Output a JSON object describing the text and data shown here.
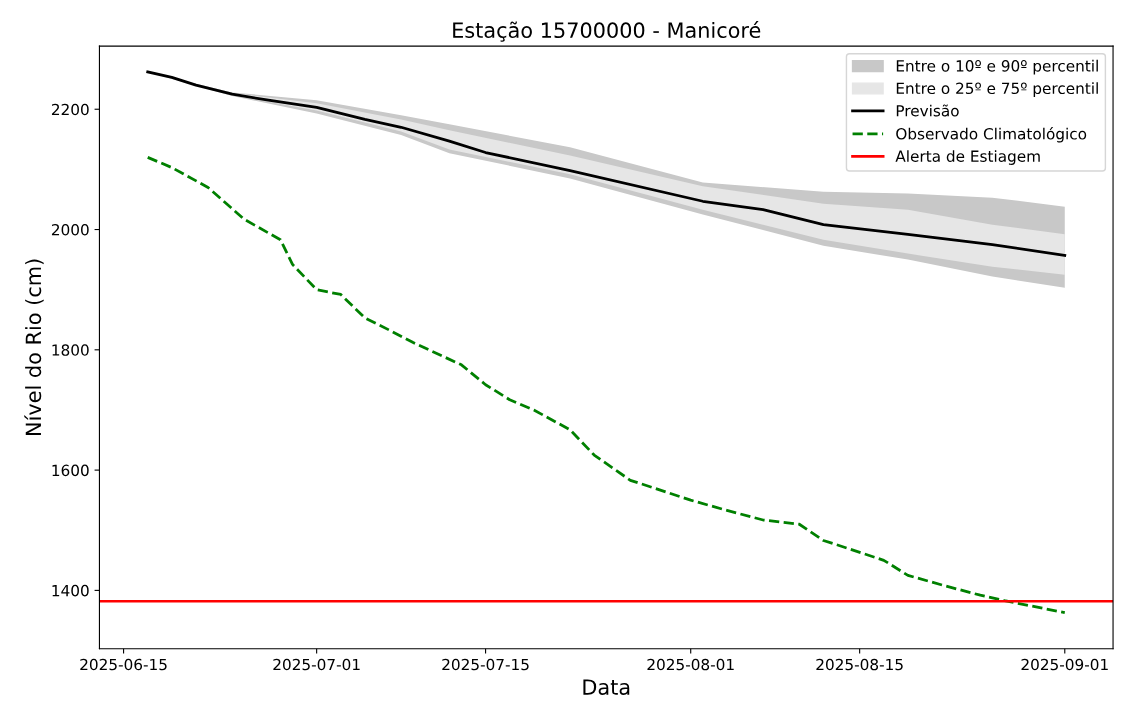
{
  "chart_data": {
    "type": "line",
    "title": "Estação 15700000 - Manicoré",
    "xlabel": "Data",
    "ylabel": "Nível do Rio (cm)",
    "x": [
      "2025-06-17",
      "2025-06-24",
      "2025-07-01",
      "2025-07-08",
      "2025-07-12",
      "2025-07-22",
      "2025-08-02",
      "2025-08-12",
      "2025-08-19",
      "2025-08-26",
      "2025-09-01"
    ],
    "series": [
      {
        "name": "Entre o 10º e 90º percentil",
        "type": "area",
        "color": "#c8c8c8",
        "values": [
          null,
          null,
          null,
          null,
          null,
          null,
          null,
          null,
          null,
          null,
          null
        ],
        "lower": [
          2262,
          2222,
          2193,
          2157,
          2127,
          2085,
          2025,
          1973,
          1950,
          1922,
          1903
        ],
        "upper": [
          2262,
          2228,
          2215,
          2190,
          2175,
          2137,
          2078,
          2063,
          2060,
          2053,
          2038
        ]
      },
      {
        "name": "Entre o 25º e 75º percentil",
        "type": "area",
        "color": "#e6e6e6",
        "values": [
          null,
          null,
          null,
          null,
          null,
          null,
          null,
          null,
          null,
          null,
          null
        ],
        "lower": [
          2262,
          2223,
          2198,
          2163,
          2133,
          2092,
          2033,
          1983,
          1960,
          1938,
          1925
        ],
        "upper": [
          2262,
          2227,
          2210,
          2183,
          2165,
          2123,
          2072,
          2043,
          2033,
          2008,
          1992
        ]
      },
      {
        "name": "Previsão",
        "color": "#000000",
        "line_style": "solid",
        "x": [
          "2025-06-17",
          "2025-06-19",
          "2025-06-21",
          "2025-06-24",
          "2025-06-27",
          "2025-07-01",
          "2025-07-05",
          "2025-07-08",
          "2025-07-12",
          "2025-07-15",
          "2025-07-22",
          "2025-08-02",
          "2025-08-07",
          "2025-08-12",
          "2025-08-19",
          "2025-08-26",
          "2025-09-01"
        ],
        "values": [
          2262,
          2253,
          2240,
          2225,
          2215,
          2203,
          2183,
          2170,
          2147,
          2128,
          2098,
          2047,
          2033,
          2008,
          1992,
          1975,
          1957
        ]
      },
      {
        "name": "Observado Climatológico",
        "color": "#008000",
        "line_style": "dashed",
        "x": [
          "2025-06-17",
          "2025-06-19",
          "2025-06-22",
          "2025-06-25",
          "2025-06-28",
          "2025-06-29",
          "2025-07-01",
          "2025-07-03",
          "2025-07-05",
          "2025-07-07",
          "2025-07-09",
          "2025-07-13",
          "2025-07-15",
          "2025-07-17",
          "2025-07-19",
          "2025-07-22",
          "2025-07-24",
          "2025-07-27",
          "2025-07-29",
          "2025-08-01",
          "2025-08-04",
          "2025-08-07",
          "2025-08-10",
          "2025-08-12",
          "2025-08-14",
          "2025-08-17",
          "2025-08-19",
          "2025-08-22",
          "2025-08-25",
          "2025-08-27",
          "2025-08-29",
          "2025-09-01"
        ],
        "values": [
          2120,
          2103,
          2070,
          2017,
          1983,
          1942,
          1900,
          1892,
          1853,
          1833,
          1812,
          1775,
          1742,
          1717,
          1700,
          1667,
          1625,
          1583,
          1570,
          1550,
          1533,
          1517,
          1510,
          1483,
          1470,
          1450,
          1425,
          1408,
          1392,
          1383,
          1375,
          1363
        ]
      }
    ],
    "ref_lines": [
      {
        "axis": "y",
        "value": 1382,
        "label": "Alerta de Estiagem",
        "color": "#ff0000",
        "line_style": "solid"
      }
    ],
    "xlim": [
      "2025-06-13",
      "2025-09-05"
    ],
    "xticks": [
      "2025-06-15",
      "2025-07-01",
      "2025-07-15",
      "2025-08-01",
      "2025-08-15",
      "2025-09-01"
    ],
    "ylim": [
      1303,
      2305
    ],
    "yticks": [
      1400,
      1600,
      1800,
      2000,
      2200
    ],
    "legend": "top right"
  }
}
